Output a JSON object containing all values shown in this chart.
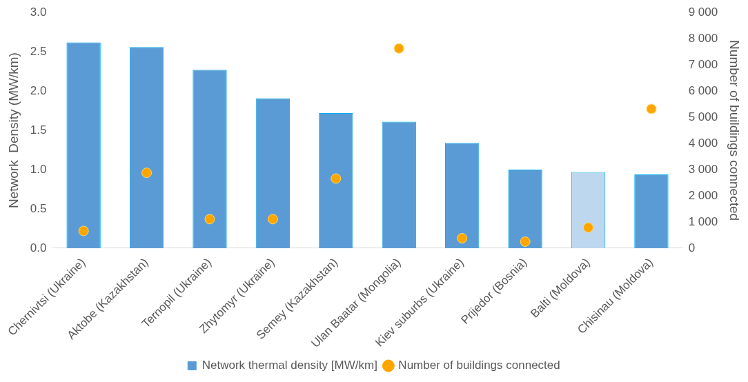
{
  "chart_data": {
    "type": "bar",
    "categories": [
      "Chernivtsi (Ukraine)",
      "Aktobe (Kazakhstan)",
      "Ternopil (Ukraine)",
      "Zhytomyr (Ukraine)",
      "Semey (Kazakhstan)",
      "Ulan Baatar (Mongolia)",
      "Kiev suburbs (Ukraine)",
      "Prijedor (Bosnia)",
      "Balti (Moldova)",
      "Chisinau (Moldova)"
    ],
    "series": [
      {
        "name": "Network thermal density [MW/km]",
        "color": "#5b9bd5",
        "colors": [
          "#5b9bd5",
          "#5b9bd5",
          "#5b9bd5",
          "#5b9bd5",
          "#5b9bd5",
          "#5b9bd5",
          "#5b9bd5",
          "#5b9bd5",
          "#bdd7ee",
          "#5b9bd5"
        ],
        "values": [
          2.62,
          2.56,
          2.27,
          1.91,
          1.72,
          1.61,
          1.34,
          1.0,
          0.97,
          0.94
        ]
      },
      {
        "name": "Number of buildings connected",
        "type": "scatter",
        "axis": "y2",
        "color": "#ffa500",
        "values": [
          660,
          2880,
          1110,
          1110,
          2660,
          7630,
          380,
          250,
          790,
          5320
        ]
      }
    ],
    "ylabel": "Network  Density (MW/km)",
    "y2label": "Number of buildings connected",
    "ylim": [
      0,
      3
    ],
    "yticks": [
      {
        "value": 0,
        "label": "0.0"
      },
      {
        "value": 0.5,
        "label": "0.5"
      },
      {
        "value": 1,
        "label": "1.0"
      },
      {
        "value": 1.5,
        "label": "1.5"
      },
      {
        "value": 2,
        "label": "2.0"
      },
      {
        "value": 2.5,
        "label": "2.5"
      },
      {
        "value": 3,
        "label": "3.0"
      }
    ],
    "y2lim": [
      0,
      9000
    ],
    "y2ticks": [
      0,
      {
        "value": 1000,
        "label": "1 000"
      },
      {
        "value": 2000,
        "label": "2 000"
      },
      {
        "value": 3000,
        "label": "3 000"
      },
      {
        "value": 4000,
        "label": "4 000"
      },
      {
        "value": 5000,
        "label": "5 000"
      },
      {
        "value": 6000,
        "label": "6 000"
      },
      {
        "value": 7000,
        "label": "7 000"
      },
      {
        "value": 8000,
        "label": "8 000"
      },
      {
        "value": 9000,
        "label": "9 000"
      }
    ],
    "legend": "bottom",
    "marker": "circle"
  }
}
